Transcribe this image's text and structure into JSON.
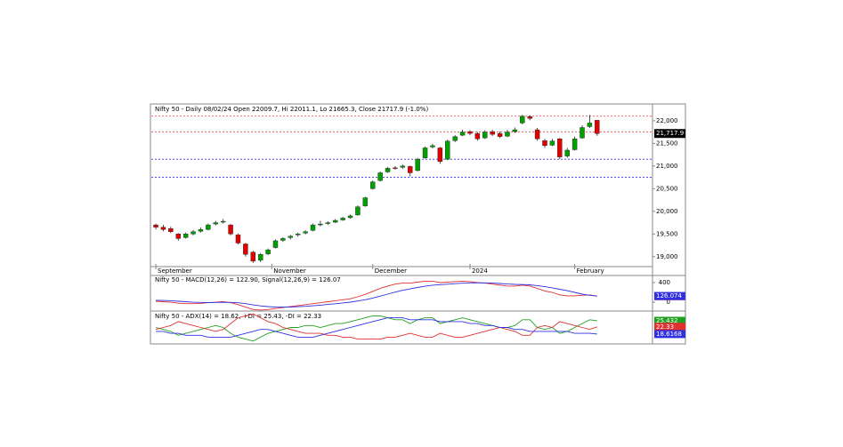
{
  "chart_data": [
    {
      "type": "candlestick",
      "title": "Nifty 50 - Daily 08/02/24 Open 22009.7, Hi 22011.1, Lo 21665.3, Close 21717.9 (-1.0%)",
      "up_color": "#00a000",
      "down_color": "#e00000",
      "candles": [
        [
          19700,
          19730,
          19600,
          19650
        ],
        [
          19650,
          19700,
          19560,
          19600
        ],
        [
          19620,
          19660,
          19520,
          19550
        ],
        [
          19500,
          19520,
          19350,
          19400
        ],
        [
          19420,
          19530,
          19400,
          19500
        ],
        [
          19500,
          19590,
          19470,
          19550
        ],
        [
          19560,
          19640,
          19530,
          19600
        ],
        [
          19600,
          19730,
          19580,
          19700
        ],
        [
          19720,
          19790,
          19690,
          19750
        ],
        [
          19760,
          19830,
          19730,
          19780
        ],
        [
          19700,
          19720,
          19470,
          19500
        ],
        [
          19480,
          19510,
          19270,
          19300
        ],
        [
          19280,
          19300,
          19000,
          19050
        ],
        [
          19100,
          19130,
          18860,
          18900
        ],
        [
          18920,
          19080,
          18880,
          19050
        ],
        [
          19060,
          19180,
          19030,
          19150
        ],
        [
          19200,
          19380,
          19180,
          19350
        ],
        [
          19360,
          19430,
          19330,
          19400
        ],
        [
          19420,
          19480,
          19380,
          19450
        ],
        [
          19480,
          19530,
          19440,
          19500
        ],
        [
          19520,
          19580,
          19490,
          19550
        ],
        [
          19580,
          19730,
          19560,
          19700
        ],
        [
          19700,
          19790,
          19670,
          19720
        ],
        [
          19730,
          19780,
          19700,
          19750
        ],
        [
          19760,
          19830,
          19740,
          19800
        ],
        [
          19810,
          19880,
          19790,
          19850
        ],
        [
          19860,
          19930,
          19840,
          19900
        ],
        [
          19920,
          20130,
          19900,
          20100
        ],
        [
          20120,
          20320,
          20100,
          20300
        ],
        [
          20500,
          20680,
          20480,
          20650
        ],
        [
          20680,
          20880,
          20660,
          20850
        ],
        [
          20870,
          20980,
          20850,
          20950
        ],
        [
          20960,
          21000,
          20920,
          20950
        ],
        [
          20970,
          21030,
          20940,
          21000
        ],
        [
          20990,
          21010,
          20770,
          20850
        ],
        [
          20900,
          21180,
          20880,
          21150
        ],
        [
          21180,
          21430,
          21160,
          21400
        ],
        [
          21420,
          21490,
          21390,
          21450
        ],
        [
          21400,
          21420,
          21050,
          21100
        ],
        [
          21150,
          21580,
          21130,
          21550
        ],
        [
          21560,
          21680,
          21530,
          21650
        ],
        [
          21680,
          21800,
          21660,
          21750
        ],
        [
          21760,
          21790,
          21680,
          21720
        ],
        [
          21720,
          21750,
          21560,
          21600
        ],
        [
          21620,
          21790,
          21600,
          21750
        ],
        [
          21760,
          21800,
          21660,
          21700
        ],
        [
          21720,
          21760,
          21620,
          21650
        ],
        [
          21660,
          21800,
          21640,
          21750
        ],
        [
          21760,
          21850,
          21730,
          21800
        ],
        [
          21950,
          22130,
          21920,
          22100
        ],
        [
          22090,
          22120,
          22010,
          22050
        ],
        [
          21800,
          21840,
          21560,
          21600
        ],
        [
          21560,
          21600,
          21400,
          21450
        ],
        [
          21460,
          21600,
          21440,
          21550
        ],
        [
          21600,
          21620,
          21150,
          21200
        ],
        [
          21220,
          21400,
          21180,
          21350
        ],
        [
          21360,
          21650,
          21340,
          21600
        ],
        [
          21620,
          21900,
          21600,
          21850
        ],
        [
          21870,
          22130,
          21840,
          21950
        ],
        [
          22009.7,
          22011.1,
          21665.3,
          21717.9
        ]
      ],
      "last_label": "21,717.9",
      "hlines": [
        {
          "value": 22100,
          "color": "#e03030"
        },
        {
          "value": 21750,
          "color": "#e03030"
        },
        {
          "value": 21150,
          "color": "#3030e0"
        },
        {
          "value": 20750,
          "color": "#3030e0"
        }
      ],
      "xlim": [
        -0.6,
        66.4
      ],
      "xticks": [
        {
          "value": 0,
          "label": "September"
        },
        {
          "value": 15.5,
          "label": "November"
        },
        {
          "value": 29,
          "label": "December"
        },
        {
          "value": 42,
          "label": "2024"
        },
        {
          "value": 56,
          "label": "February"
        }
      ],
      "ylim": [
        18780,
        22350
      ],
      "yticks": [
        {
          "value": 19000,
          "label": "19,000"
        },
        {
          "value": 19500,
          "label": "19,500"
        },
        {
          "value": 20000,
          "label": "20,000"
        },
        {
          "value": 20500,
          "label": "20,500"
        },
        {
          "value": 21000,
          "label": "21,000"
        },
        {
          "value": 21500,
          "label": "21,500"
        },
        {
          "value": 22000,
          "label": "22,000"
        }
      ]
    },
    {
      "type": "line",
      "title": "Nifty 50 - MACD(12,26) = 122.90, Signal(12,26,9) = 126.07",
      "xlim": [
        -0.6,
        66.4
      ],
      "ylim": [
        -180,
        527
      ],
      "yticks": [
        0,
        400
      ],
      "series": [
        {
          "name": "MACD",
          "color": "#e03030",
          "last_label": "122.90",
          "values": [
            20,
            10,
            0,
            -20,
            -30,
            -30,
            -25,
            -10,
            0,
            10,
            -10,
            -50,
            -100,
            -150,
            -160,
            -150,
            -130,
            -110,
            -90,
            -70,
            -50,
            -30,
            -10,
            10,
            30,
            50,
            70,
            110,
            160,
            220,
            280,
            330,
            370,
            390,
            390,
            410,
            430,
            430,
            400,
            410,
            420,
            430,
            420,
            400,
            390,
            370,
            350,
            330,
            330,
            350,
            330,
            280,
            230,
            200,
            150,
            130,
            130,
            140,
            150,
            122.9
          ]
        },
        {
          "name": "Signal",
          "color": "#3030e0",
          "last_label": "126.074",
          "values": [
            40,
            35,
            30,
            20,
            10,
            0,
            -5,
            -8,
            -5,
            -2,
            -4,
            -12,
            -30,
            -55,
            -75,
            -90,
            -100,
            -100,
            -98,
            -92,
            -84,
            -73,
            -60,
            -46,
            -31,
            -15,
            2,
            24,
            51,
            85,
            124,
            165,
            206,
            243,
            272,
            300,
            326,
            347,
            358,
            368,
            378,
            388,
            394,
            396,
            395,
            390,
            382,
            371,
            363,
            360,
            354,
            339,
            317,
            294,
            265,
            235,
            200,
            165,
            140,
            126.07
          ]
        }
      ]
    },
    {
      "type": "line",
      "title": "Nifty 50 - ADX(14) = 18.62, +DI = 25.43, -DI = 22.33",
      "xlim": [
        -0.6,
        66.4
      ],
      "ylim": [
        14,
        30
      ],
      "series": [
        {
          "name": "+DI",
          "color": "#20a020",
          "last_label": "25.432",
          "values": [
            22,
            21,
            20,
            18,
            19,
            20,
            21,
            22,
            23,
            22,
            19,
            17,
            16,
            15,
            17,
            19,
            20,
            21,
            22,
            22,
            23,
            23,
            22,
            23,
            24,
            24,
            25,
            26,
            27,
            28,
            28,
            27,
            26,
            26,
            24,
            26,
            27,
            27,
            24,
            25,
            26,
            27,
            26,
            25,
            24,
            23,
            22,
            22,
            23,
            26,
            26,
            22,
            21,
            22,
            19,
            20,
            22,
            24,
            26,
            25.43
          ]
        },
        {
          "name": "-DI",
          "color": "#e03030",
          "last_label": "22.33",
          "values": [
            21,
            22,
            23,
            25,
            24,
            23,
            22,
            21,
            20,
            21,
            24,
            27,
            28,
            29,
            27,
            25,
            24,
            22,
            21,
            20,
            19,
            19,
            19,
            18,
            18,
            17,
            17,
            16,
            16,
            16,
            16,
            17,
            17,
            18,
            19,
            18,
            17,
            17,
            19,
            18,
            17,
            17,
            18,
            19,
            20,
            21,
            22,
            21,
            20,
            18,
            18,
            22,
            23,
            22,
            25,
            24,
            23,
            22,
            21,
            22.33
          ]
        },
        {
          "name": "ADX",
          "color": "#3030e0",
          "last_label": "18.6168",
          "values": [
            20,
            20,
            19,
            19,
            18,
            18,
            18,
            17,
            17,
            17,
            17,
            18,
            19,
            20,
            21,
            21,
            20,
            19,
            18,
            17,
            17,
            17,
            18,
            19,
            20,
            21,
            22,
            23,
            24,
            25,
            26,
            27,
            27,
            27,
            26,
            26,
            26,
            26,
            25,
            25,
            25,
            25,
            24,
            24,
            23,
            23,
            22,
            22,
            21,
            21,
            20,
            20,
            20,
            20,
            20,
            20,
            19,
            19,
            19,
            18.62
          ]
        }
      ]
    }
  ]
}
